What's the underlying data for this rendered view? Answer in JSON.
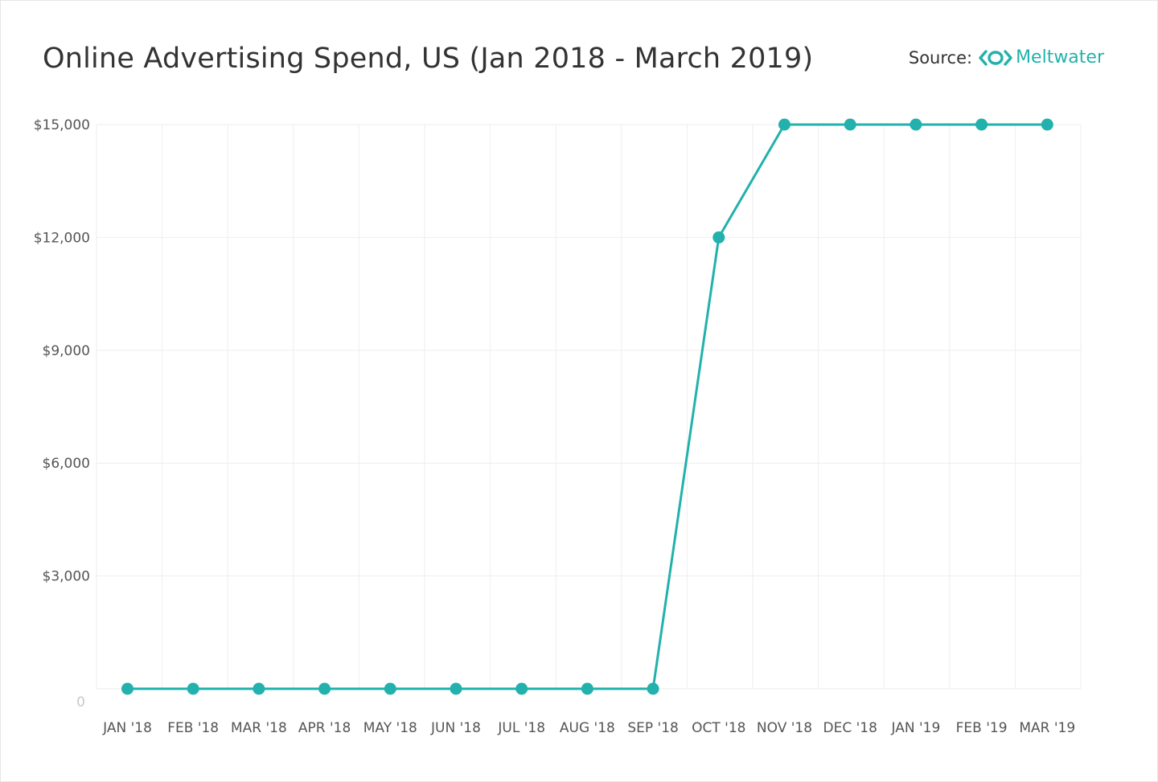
{
  "title": "Online Advertising Spend, US  (Jan 2018 - March 2019)",
  "source": {
    "label": "Source:",
    "brand": "Meltwater",
    "brand_color": "#22b1ac"
  },
  "colors": {
    "line": "#22b1ac",
    "grid": "#eeeeee"
  },
  "chart_data": {
    "type": "line",
    "title": "Online Advertising Spend, US  (Jan 2018 - March 2019)",
    "xlabel": "",
    "ylabel": "",
    "categories": [
      "JAN '18",
      "FEB '18",
      "MAR '18",
      "APR '18",
      "MAY '18",
      "JUN '18",
      "JUL '18",
      "AUG '18",
      "SEP '18",
      "OCT '18",
      "NOV '18",
      "DEC '18",
      "JAN '19",
      "FEB '19",
      "MAR '19"
    ],
    "series": [
      {
        "name": "Online Advertising Spend",
        "values": [
          0,
          0,
          0,
          0,
          0,
          0,
          0,
          0,
          0,
          12000,
          15000,
          15000,
          15000,
          15000,
          15000
        ]
      }
    ],
    "ylim": [
      0,
      15000
    ],
    "yticks": [
      0,
      3000,
      6000,
      9000,
      12000,
      15000
    ],
    "ytick_labels": [
      "0",
      "$3,000",
      "$6,000",
      "$9,000",
      "$12,000",
      "$15,000"
    ],
    "grid": true,
    "legend": "none"
  }
}
